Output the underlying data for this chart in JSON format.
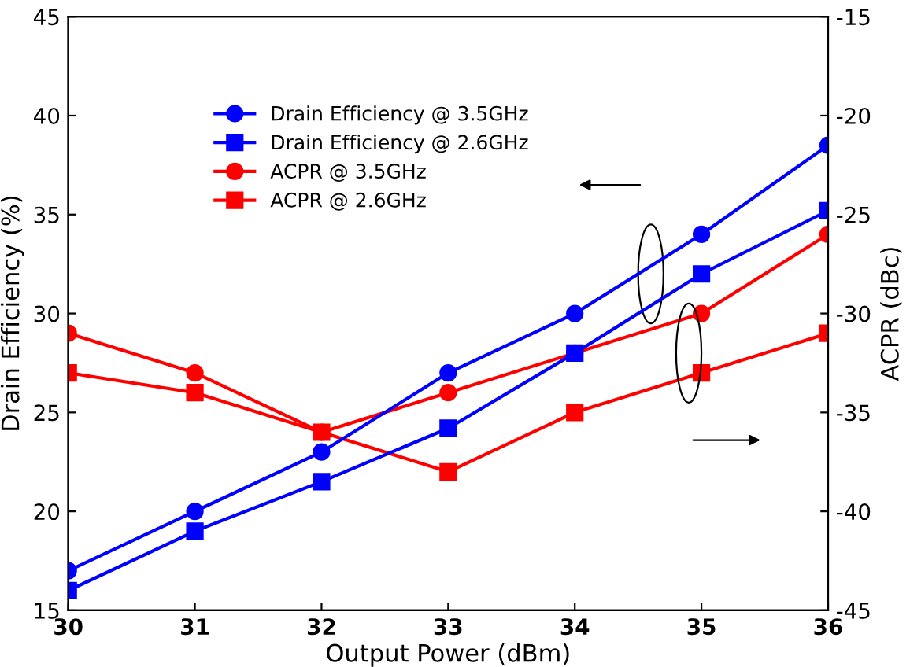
{
  "chart_data": {
    "type": "line",
    "xlabel": "Output Power (dBm)",
    "ylabel": "Drain Efficiency (%)",
    "y2label": "ACPR (dBc)",
    "x": [
      30,
      31,
      32,
      33,
      34,
      35,
      36
    ],
    "xlim": [
      30,
      36
    ],
    "xticks": [
      30,
      31,
      32,
      33,
      34,
      35,
      36
    ],
    "ylim": [
      15,
      45
    ],
    "yticks": [
      15,
      20,
      25,
      30,
      35,
      40,
      45
    ],
    "y2lim": [
      -45,
      -15
    ],
    "y2ticks": [
      -45,
      -40,
      -35,
      -30,
      -25,
      -20,
      -15
    ],
    "legend": "top left",
    "grid": false,
    "series": [
      {
        "name": "Drain Efficiency @ 3.5GHz",
        "color": "#0000ff",
        "marker": "circle",
        "values": [
          17,
          20,
          23,
          27,
          30,
          34,
          38.5
        ]
      },
      {
        "name": "Drain Efficiency @ 2.6GHz",
        "color": "#0000ff",
        "marker": "square",
        "values": [
          16,
          19,
          21.5,
          24.2,
          28,
          32,
          35.2
        ]
      },
      {
        "name": "ACPR @ 3.5GHz",
        "color": "#ff0000",
        "marker": "circle",
        "axis": "y2",
        "values": [
          -31,
          -33,
          -36,
          -34,
          -32,
          -30,
          -26
        ]
      },
      {
        "name": "ACPR @ 2.6GHz",
        "color": "#ff0000",
        "marker": "square",
        "axis": "y2",
        "values": [
          -33,
          -34,
          -36,
          -38,
          -35,
          -33,
          -31
        ]
      }
    ]
  }
}
